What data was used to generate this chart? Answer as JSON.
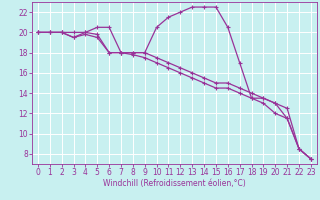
{
  "xlabel": "Windchill (Refroidissement éolien,°C)",
  "bg_color": "#c8f0f0",
  "grid_color": "#ffffff",
  "line_color": "#993399",
  "x_ticks": [
    0,
    1,
    2,
    3,
    4,
    5,
    6,
    7,
    8,
    9,
    10,
    11,
    12,
    13,
    14,
    15,
    16,
    17,
    18,
    19,
    20,
    21,
    22,
    23
  ],
  "y_ticks": [
    8,
    10,
    12,
    14,
    16,
    18,
    20,
    22
  ],
  "xlim": [
    -0.5,
    23.5
  ],
  "ylim": [
    7.0,
    23.0
  ],
  "series1_x": [
    0,
    1,
    2,
    3,
    4,
    5,
    6,
    7,
    8,
    9,
    10,
    11,
    12,
    13,
    14,
    15,
    16,
    17,
    18,
    19,
    20,
    21,
    22,
    23
  ],
  "series1_y": [
    20,
    20,
    20,
    20,
    20,
    20.5,
    20.5,
    18,
    18,
    18,
    20.5,
    21.5,
    22,
    22.5,
    22.5,
    22.5,
    20.5,
    17,
    13.5,
    13.5,
    13,
    11.5,
    8.5,
    7.5
  ],
  "series2_x": [
    0,
    1,
    2,
    3,
    4,
    5,
    6,
    7,
    8,
    9,
    10,
    11,
    12,
    13,
    14,
    15,
    16,
    17,
    18,
    19,
    20,
    21,
    22,
    23
  ],
  "series2_y": [
    20,
    20,
    20,
    19.5,
    20,
    19.8,
    18,
    18,
    18,
    18,
    17.5,
    17,
    16.5,
    16,
    15.5,
    15,
    15,
    14.5,
    14,
    13.5,
    13,
    12.5,
    8.5,
    7.5
  ],
  "series3_x": [
    0,
    1,
    2,
    3,
    4,
    5,
    6,
    7,
    8,
    9,
    10,
    11,
    12,
    13,
    14,
    15,
    16,
    17,
    18,
    19,
    20,
    21,
    22,
    23
  ],
  "series3_y": [
    20,
    20,
    20,
    19.5,
    19.8,
    19.5,
    18,
    18,
    17.8,
    17.5,
    17,
    16.5,
    16,
    15.5,
    15,
    14.5,
    14.5,
    14,
    13.5,
    13,
    12,
    11.5,
    8.5,
    7.5
  ],
  "tick_fontsize": 5.5,
  "xlabel_fontsize": 5.5
}
